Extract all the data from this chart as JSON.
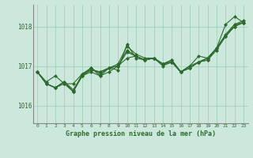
{
  "background_color": "#cce8dc",
  "plot_bg_color": "#cce8dc",
  "line_color": "#2d6a2d",
  "grid_color": "#99ccb3",
  "xlabel": "Graphe pression niveau de la mer (hPa)",
  "xlim": [
    -0.5,
    23.5
  ],
  "ylim": [
    1015.55,
    1018.55
  ],
  "yticks": [
    1016,
    1017,
    1018
  ],
  "xticks": [
    0,
    1,
    2,
    3,
    4,
    5,
    6,
    7,
    8,
    9,
    10,
    11,
    12,
    13,
    14,
    15,
    16,
    17,
    18,
    19,
    20,
    21,
    22,
    23
  ],
  "series": [
    [
      1016.85,
      1016.6,
      1016.75,
      1016.55,
      1016.55,
      1016.8,
      1016.9,
      1016.85,
      1016.95,
      1017.05,
      1017.5,
      1017.3,
      1017.2,
      1017.2,
      1017.05,
      1017.15,
      1016.85,
      1017.0,
      1017.25,
      1017.2,
      1017.45,
      1018.05,
      1018.25,
      1018.1
    ],
    [
      1016.85,
      1016.55,
      1016.45,
      1016.55,
      1016.35,
      1016.75,
      1016.85,
      1016.75,
      1016.85,
      1017.0,
      1017.2,
      1017.25,
      1017.15,
      1017.2,
      1017.05,
      1017.15,
      1016.85,
      1017.0,
      1017.1,
      1017.2,
      1017.45,
      1017.8,
      1018.05,
      1018.1
    ],
    [
      1016.85,
      1016.55,
      1016.45,
      1016.6,
      1016.4,
      1016.75,
      1016.95,
      1016.75,
      1016.95,
      1016.9,
      1017.55,
      1017.2,
      1017.15,
      1017.2,
      1017.05,
      1017.1,
      1016.85,
      1016.95,
      1017.1,
      1017.15,
      1017.45,
      1017.75,
      1018.05,
      1018.15
    ],
    [
      1016.85,
      1016.55,
      1016.45,
      1016.6,
      1016.35,
      1016.8,
      1016.95,
      1016.8,
      1016.95,
      1017.0,
      1017.4,
      1017.25,
      1017.15,
      1017.2,
      1017.0,
      1017.1,
      1016.85,
      1016.95,
      1017.1,
      1017.15,
      1017.4,
      1017.75,
      1018.0,
      1018.1
    ],
    [
      1016.85,
      1016.55,
      1016.45,
      1016.6,
      1016.35,
      1016.75,
      1016.9,
      1016.85,
      1016.95,
      1017.0,
      1017.35,
      1017.25,
      1017.15,
      1017.2,
      1017.05,
      1017.1,
      1016.85,
      1016.95,
      1017.1,
      1017.2,
      1017.45,
      1017.75,
      1018.0,
      1018.1
    ]
  ]
}
